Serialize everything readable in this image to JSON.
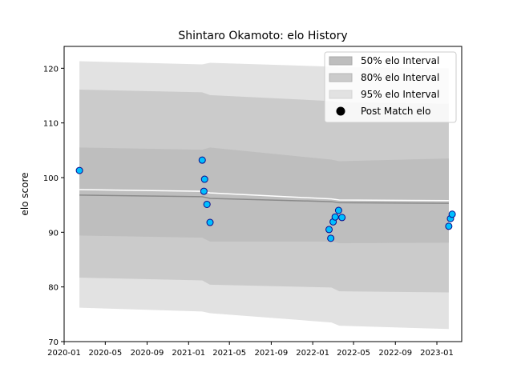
{
  "chart_data": {
    "type": "line",
    "title": "Shintaro Okamoto: elo History",
    "xlabel": "",
    "ylabel": "elo score",
    "x_ticks": [
      "2020-01",
      "2020-05",
      "2020-09",
      "2021-01",
      "2021-05",
      "2021-09",
      "2022-01",
      "2022-05",
      "2022-09",
      "2023-01"
    ],
    "y_ticks": [
      70,
      80,
      90,
      100,
      110,
      120
    ],
    "ylim": [
      70,
      124
    ],
    "xlim": [
      "2020-01-01",
      "2023-03-15"
    ],
    "grid": false,
    "legend_position": "top-right",
    "legend": [
      "50% elo Interval",
      "80% elo Interval",
      "95% elo Interval",
      "Post Match elo"
    ],
    "band_dates": [
      "2020-02-15",
      "2021-02-10",
      "2021-03-05",
      "2022-02-25",
      "2022-03-20",
      "2023-02-05"
    ],
    "bands": {
      "p95": {
        "upper": [
          121.3,
          120.7,
          121.0,
          120.3,
          120.2,
          120.0
        ],
        "lower": [
          76.2,
          75.5,
          75.2,
          73.5,
          72.9,
          72.3
        ]
      },
      "p80": {
        "upper": [
          116.1,
          115.6,
          115.1,
          114.0,
          113.8,
          113.5
        ],
        "lower": [
          81.7,
          81.2,
          80.4,
          79.9,
          79.2,
          79.0
        ]
      },
      "p50": {
        "upper": [
          105.5,
          105.1,
          105.5,
          103.3,
          103.0,
          103.5
        ],
        "lower": [
          89.4,
          89.0,
          88.3,
          88.3,
          88.0,
          88.1
        ]
      }
    },
    "mean_line": {
      "dates": [
        "2020-02-15",
        "2021-02-10",
        "2021-03-05",
        "2022-02-25",
        "2022-03-20",
        "2023-02-05"
      ],
      "values": [
        96.8,
        96.5,
        96.2,
        95.6,
        95.4,
        95.3
      ]
    },
    "white_line": {
      "dates": [
        "2020-02-15",
        "2021-02-10",
        "2021-03-05",
        "2022-02-25",
        "2022-03-20",
        "2023-02-05"
      ],
      "values": [
        97.8,
        97.5,
        97.2,
        96.1,
        95.9,
        95.8
      ]
    },
    "points": {
      "dates": [
        "2020-02-15",
        "2021-02-10",
        "2021-02-15",
        "2021-02-17",
        "2021-02-24",
        "2021-03-05",
        "2022-02-18",
        "2022-02-23",
        "2022-03-02",
        "2022-03-08",
        "2022-03-18",
        "2022-03-28",
        "2023-02-05",
        "2023-02-10",
        "2023-02-15"
      ],
      "values": [
        101.3,
        103.2,
        97.5,
        99.7,
        95.1,
        91.8,
        90.5,
        88.9,
        91.9,
        92.8,
        94.0,
        92.7,
        91.1,
        92.5,
        93.3
      ]
    },
    "colors": {
      "band_p95": "#e2e2e2",
      "band_p80": "#cbcbcb",
      "band_p50": "#bebebe",
      "mean_line": "#8a8a8a",
      "white_line": "#ffffff",
      "point_fill": "#00bfff",
      "point_edge": "#0a0a8c"
    }
  }
}
